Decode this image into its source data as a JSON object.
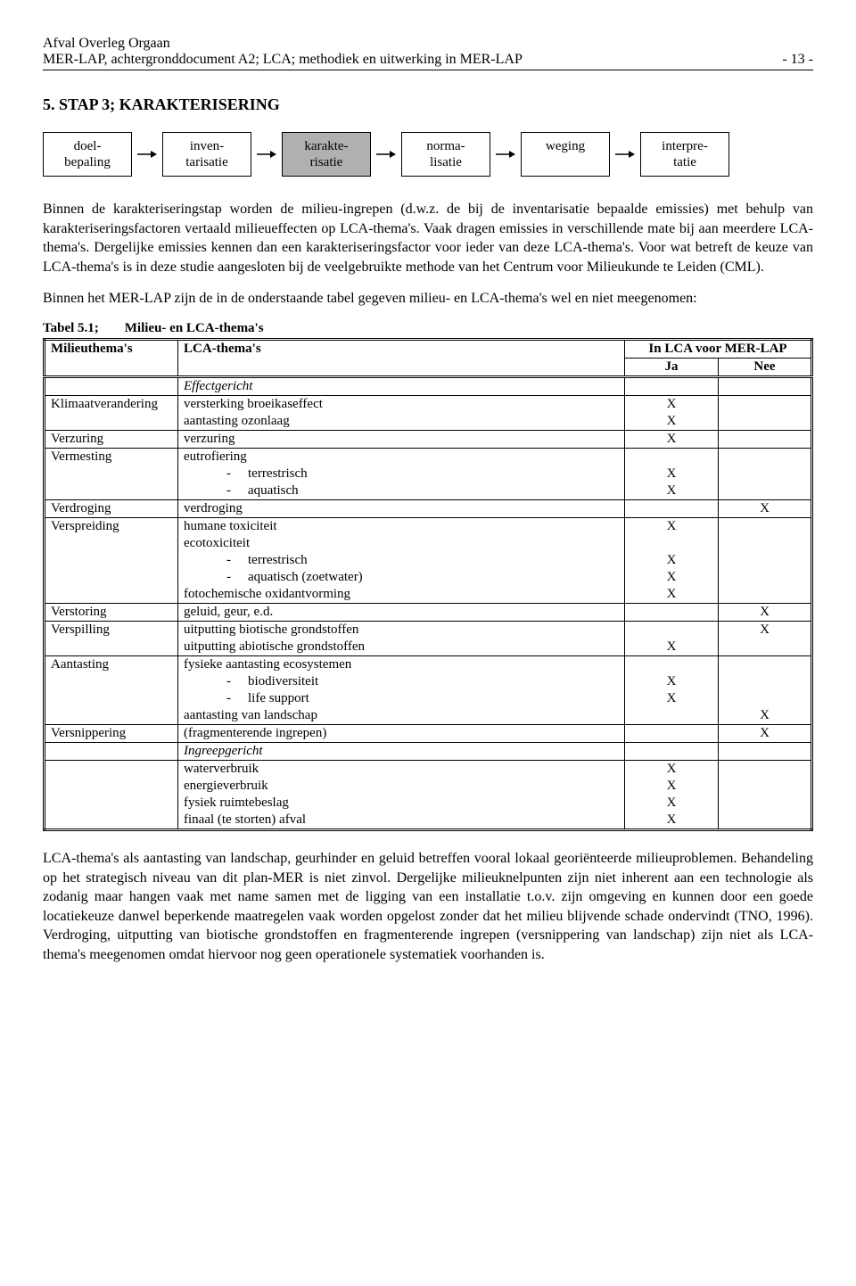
{
  "header": {
    "org": "Afval Overleg Orgaan",
    "doc": "MER-LAP, achtergronddocument A2; LCA; methodiek en uitwerking in MER-LAP",
    "page": "- 13 -"
  },
  "section": {
    "title": "5.   STAP 3; KARAKTERISERING"
  },
  "flow": {
    "boxes": [
      {
        "l1": "doel-",
        "l2": "bepaling",
        "hl": false
      },
      {
        "l1": "inven-",
        "l2": "tarisatie",
        "hl": false
      },
      {
        "l1": "karakte-",
        "l2": "risatie",
        "hl": true
      },
      {
        "l1": "norma-",
        "l2": "lisatie",
        "hl": false
      },
      {
        "l1": "weging",
        "l2": " ",
        "hl": false
      },
      {
        "l1": "interpre-",
        "l2": "tatie",
        "hl": false
      }
    ],
    "arrow_color": "#000000"
  },
  "para1": "Binnen de karakteriseringstap worden de milieu-ingrepen (d.w.z. de bij de inventarisatie bepaalde emissies) met behulp van karakteriseringsfactoren vertaald milieueffecten op LCA-thema's. Vaak dragen emissies in verschillende mate bij aan meerdere LCA-thema's. Dergelijke emissies kennen dan een karakteriseringsfactor voor ieder van deze LCA-thema's. Voor wat betreft de keuze van LCA-thema's is in deze studie aangesloten bij de veelgebruikte methode van het Centrum voor Milieukunde te Leiden (CML).",
  "para2": "Binnen het MER-LAP zijn de in de onderstaande tabel gegeven milieu- en LCA-thema's wel en niet meegenomen:",
  "table": {
    "caption_label": "Tabel 5.1;",
    "caption_title": "Milieu- en LCA-thema's",
    "headers": {
      "col1": "Milieuthema's",
      "col2": "LCA-thema's",
      "col3": "In LCA voor MER-LAP",
      "ja": "Ja",
      "nee": "Nee"
    },
    "section1": "Effectgericht",
    "section2": "Ingreepgericht",
    "rows": [
      {
        "theme": "Klimaatverandering",
        "lines": [
          {
            "text": "versterking broeikaseffect",
            "ja": "X",
            "nee": ""
          },
          {
            "text": "aantasting ozonlaag",
            "ja": "X",
            "nee": ""
          }
        ],
        "end": true
      },
      {
        "theme": "Verzuring",
        "lines": [
          {
            "text": "verzuring",
            "ja": "X",
            "nee": ""
          }
        ],
        "end": true
      },
      {
        "theme": "Vermesting",
        "lines": [
          {
            "text": "eutrofiering",
            "ja": "",
            "nee": ""
          },
          {
            "text": "terrestrisch",
            "sub": true,
            "ja": "X",
            "nee": ""
          },
          {
            "text": "aquatisch",
            "sub": true,
            "ja": "X",
            "nee": ""
          }
        ],
        "end": true
      },
      {
        "theme": "Verdroging",
        "lines": [
          {
            "text": "verdroging",
            "ja": "",
            "nee": "X"
          }
        ],
        "end": true
      },
      {
        "theme": "Verspreiding",
        "lines": [
          {
            "text": "humane toxiciteit",
            "ja": "X",
            "nee": ""
          },
          {
            "text": "ecotoxiciteit",
            "ja": "",
            "nee": ""
          },
          {
            "text": "terrestrisch",
            "sub": true,
            "ja": "X",
            "nee": ""
          },
          {
            "text": "aquatisch (zoetwater)",
            "sub": true,
            "ja": "X",
            "nee": ""
          },
          {
            "text": "fotochemische oxidantvorming",
            "ja": "X",
            "nee": ""
          }
        ],
        "end": true
      },
      {
        "theme": "Verstoring",
        "lines": [
          {
            "text": "geluid, geur, e.d.",
            "ja": "",
            "nee": "X"
          }
        ],
        "end": true
      },
      {
        "theme": "Verspilling",
        "lines": [
          {
            "text": "uitputting biotische grondstoffen",
            "ja": "",
            "nee": "X"
          },
          {
            "text": "uitputting abiotische grondstoffen",
            "ja": "X",
            "nee": ""
          }
        ],
        "end": true
      },
      {
        "theme": "Aantasting",
        "lines": [
          {
            "text": "fysieke aantasting ecosystemen",
            "ja": "",
            "nee": ""
          },
          {
            "text": "biodiversiteit",
            "sub": true,
            "ja": "X",
            "nee": ""
          },
          {
            "text": "life support",
            "sub": true,
            "ja": "X",
            "nee": ""
          },
          {
            "text": "aantasting van landschap",
            "ja": "",
            "nee": "X"
          }
        ],
        "end": true
      },
      {
        "theme": "Versnippering",
        "lines": [
          {
            "text": "(fragmenterende ingrepen)",
            "ja": "",
            "nee": "X"
          }
        ],
        "end": true
      }
    ],
    "rows2": [
      {
        "theme": "",
        "lines": [
          {
            "text": "waterverbruik",
            "ja": "X",
            "nee": ""
          },
          {
            "text": "energieverbruik",
            "ja": "X",
            "nee": ""
          },
          {
            "text": "fysiek ruimtebeslag",
            "ja": "X",
            "nee": ""
          },
          {
            "text": "finaal (te storten) afval",
            "ja": "X",
            "nee": ""
          }
        ],
        "end": false
      }
    ]
  },
  "para3": "LCA-thema's als aantasting van landschap, geurhinder en geluid betreffen vooral lokaal georiënteerde milieuproblemen. Behandeling op het strategisch niveau van dit plan-MER is niet zinvol. Dergelijke milieuknelpunten zijn niet inherent aan een technologie als zodanig maar hangen vaak met name samen met de ligging van een installatie t.o.v. zijn omgeving en kunnen door een goede locatiekeuze danwel beperkende maatregelen vaak worden opgelost zonder dat het milieu blijvende schade ondervindt (TNO, 1996). Verdroging, uitputting van biotische grondstoffen en fragmenterende ingrepen (versnippering van landschap) zijn niet als LCA-thema's meegenomen omdat hiervoor nog geen operationele systematiek voorhanden is."
}
